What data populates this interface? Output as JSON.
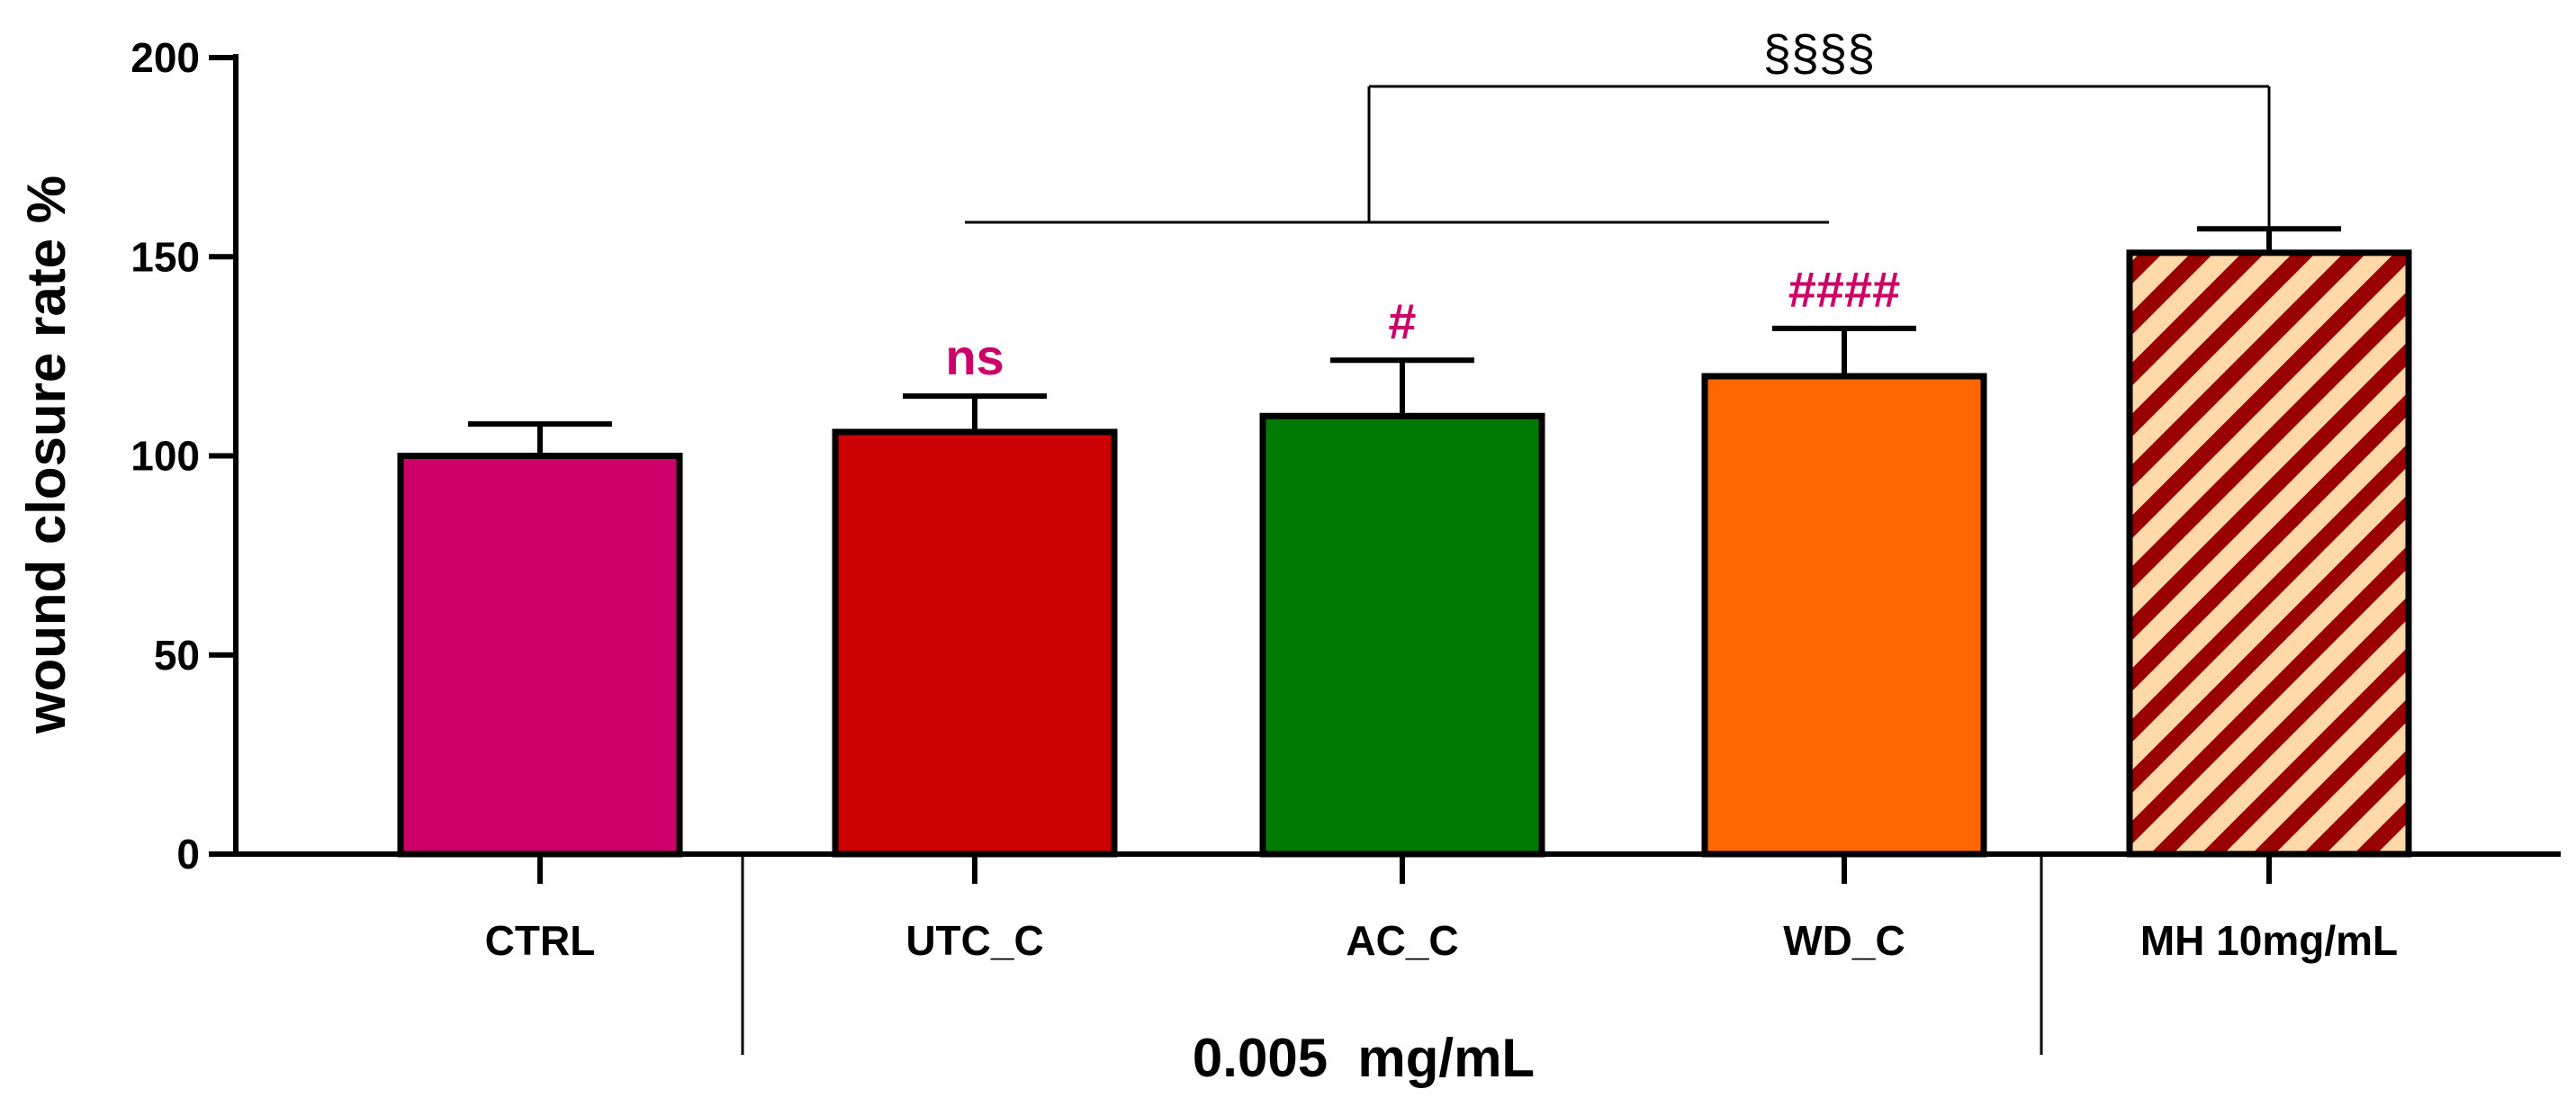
{
  "chart_data": {
    "type": "bar",
    "title": "",
    "xlabel": "",
    "ylabel": "wound closure rate %",
    "ylim": [
      0,
      200
    ],
    "yticks": [
      0,
      50,
      100,
      150,
      200
    ],
    "ytick_labels": [
      "0",
      "50",
      "100",
      "150",
      "200"
    ],
    "categories": [
      "CTRL",
      "UTC_C",
      "AC_C",
      "WD_C",
      "MH 10mg/mL"
    ],
    "values": [
      100,
      106,
      110,
      120,
      151
    ],
    "errors": [
      8,
      9,
      14,
      12,
      6
    ],
    "colors": [
      "#CC0066",
      "#CC0000",
      "#007A00",
      "#FF6600",
      "hatch"
    ],
    "hatch_colors": {
      "fill": "#FFD9A8",
      "stripe": "#990000"
    },
    "group_label": "0.005  mg/mL",
    "grouped_categories": [
      "UTC_C",
      "AC_C",
      "WD_C"
    ],
    "annotations": [
      {
        "category": "UTC_C",
        "text": "ns",
        "color": "#CC0066"
      },
      {
        "category": "AC_C",
        "text": "#",
        "color": "#CC0066"
      },
      {
        "category": "WD_C",
        "text": "####",
        "color": "#CC0066"
      }
    ],
    "bracket": {
      "text": "§§§§",
      "from_group": [
        "UTC_C",
        "AC_C",
        "WD_C"
      ],
      "to": "MH 10mg/mL"
    }
  }
}
